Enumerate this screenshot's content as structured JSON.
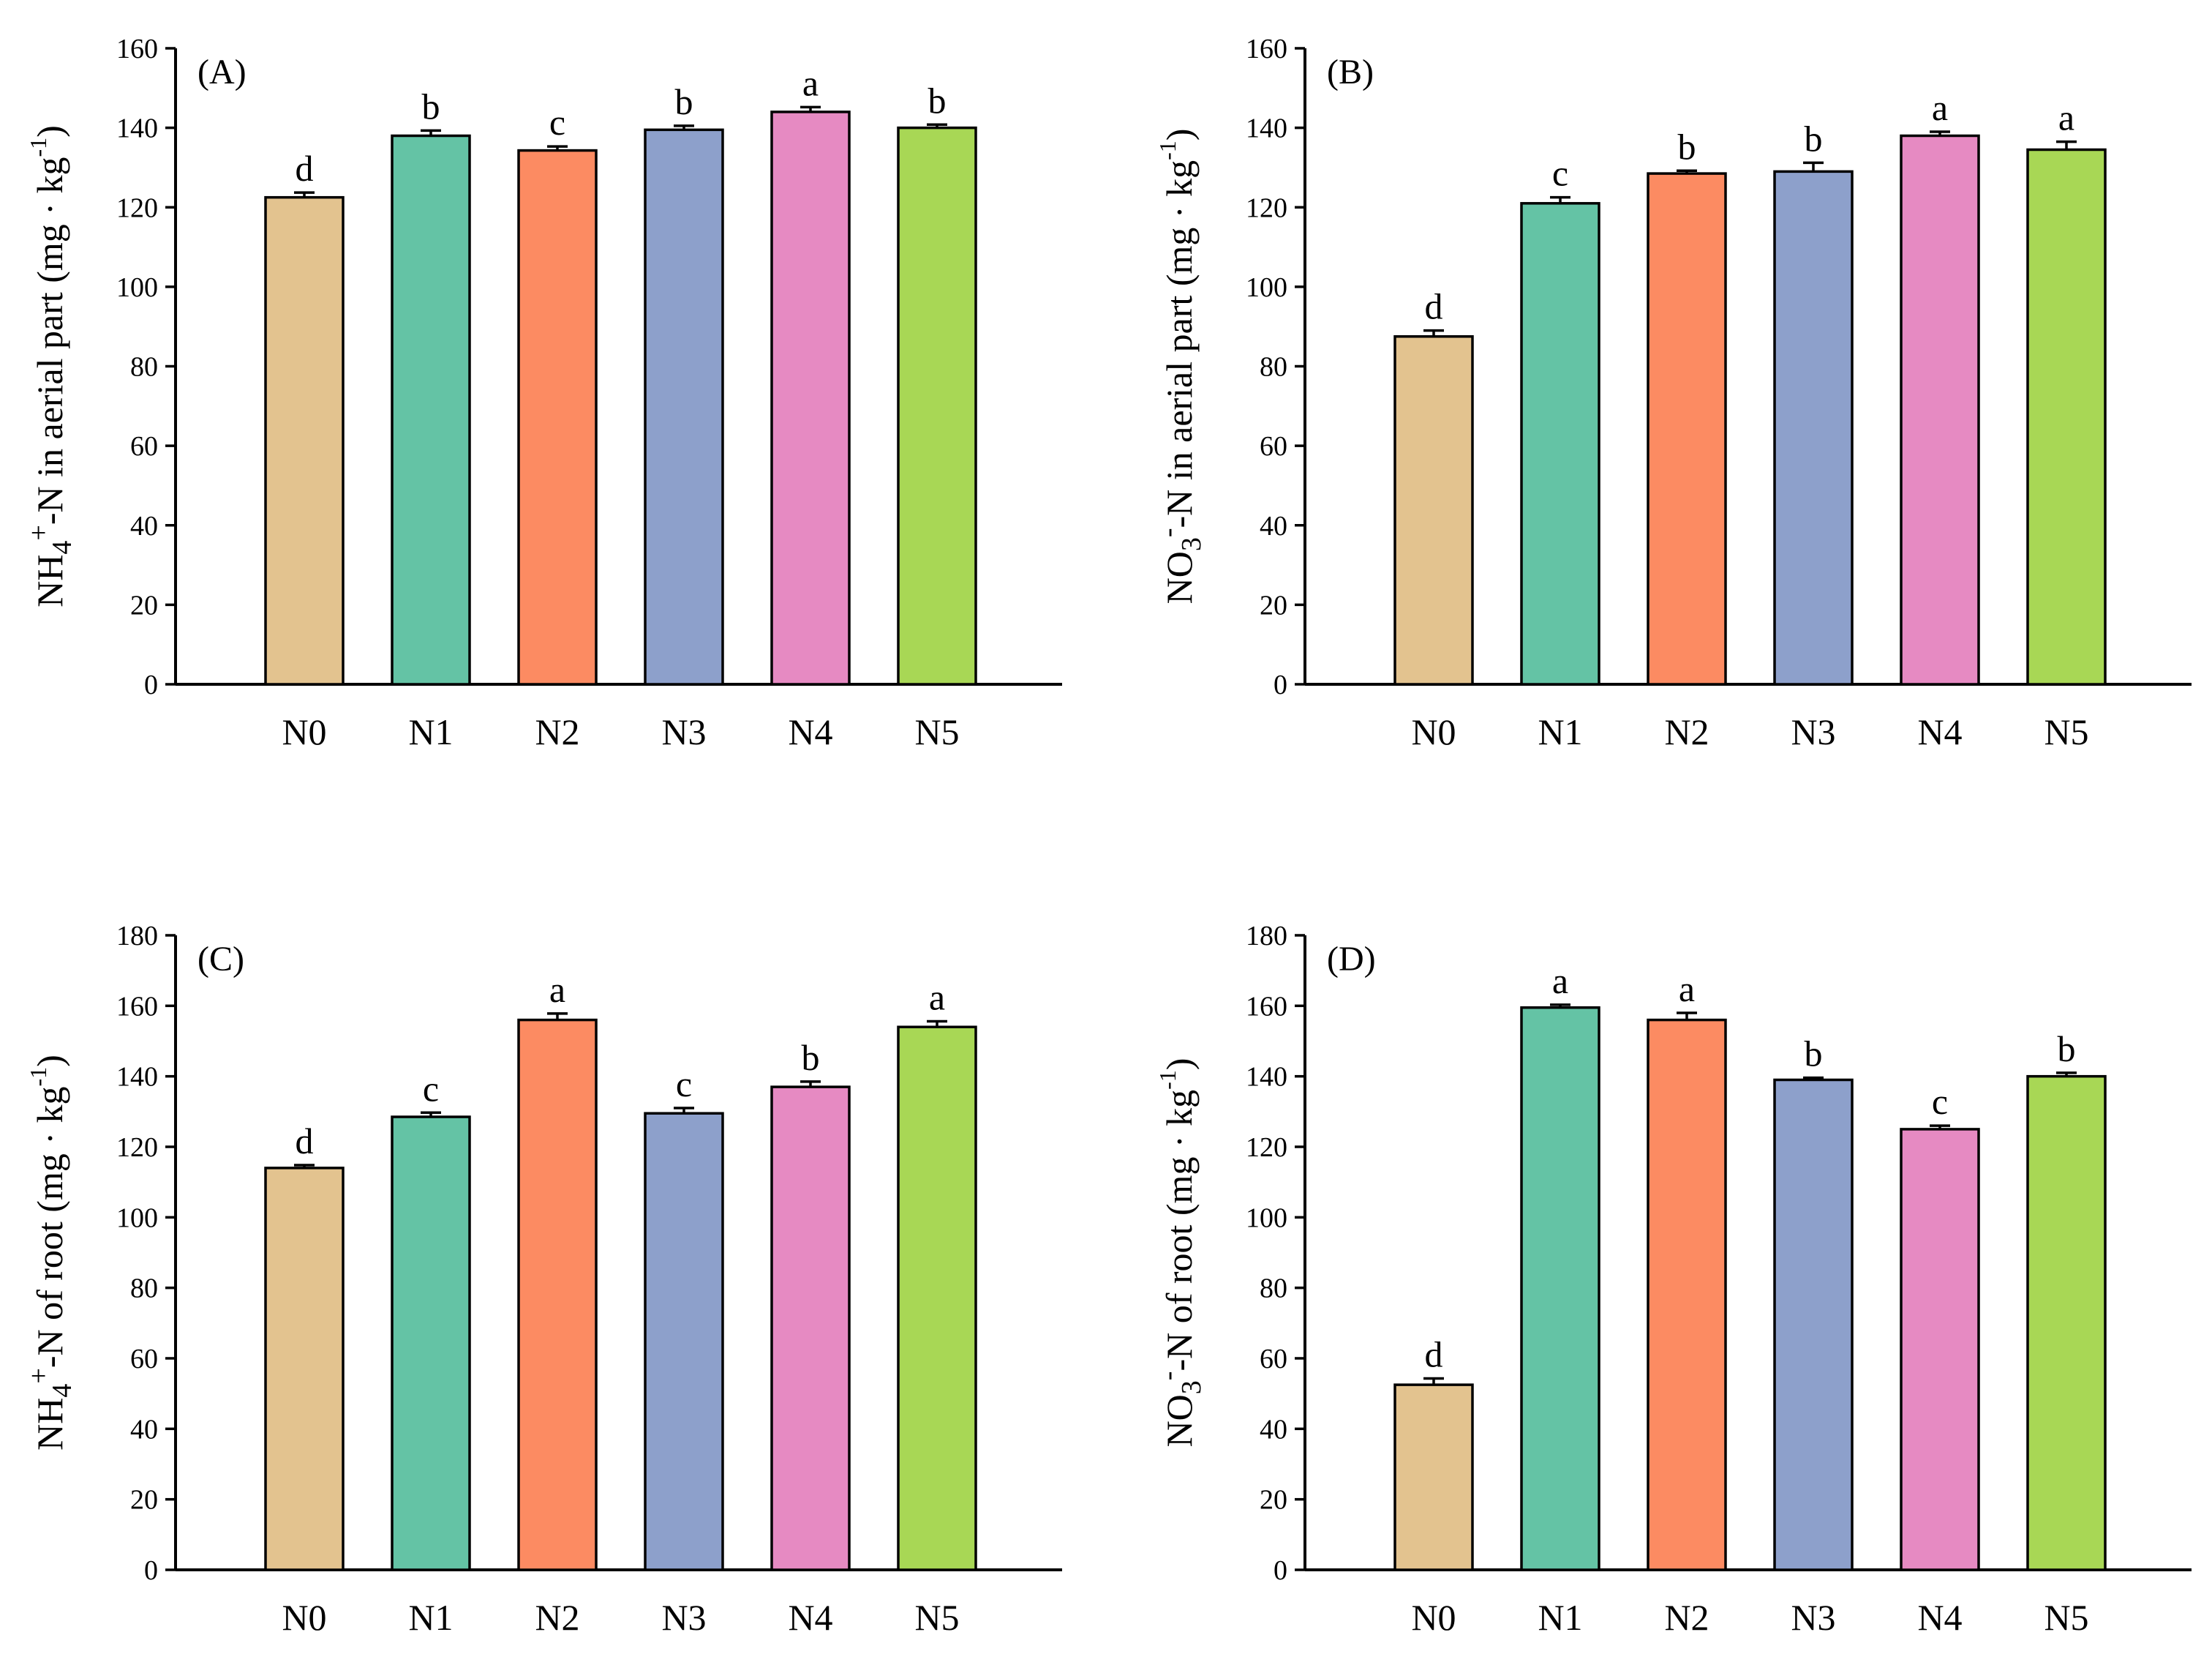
{
  "colors": [
    "#e3c38f",
    "#64c3a5",
    "#fc8b62",
    "#8da0cb",
    "#e68ac2",
    "#a8d755"
  ],
  "chart_data": [
    {
      "type": "bar",
      "panel": "(A)",
      "categories": [
        "N0",
        "N1",
        "N2",
        "N3",
        "N4",
        "N5"
      ],
      "values": [
        122.5,
        138,
        134.3,
        139.5,
        144,
        140
      ],
      "errors": [
        1.2,
        1.3,
        1.0,
        1.0,
        1.2,
        0.8
      ],
      "letters": [
        "d",
        "b",
        "c",
        "b",
        "a",
        "b"
      ],
      "ylabel": {
        "pre": "NH",
        "sub": "4",
        "sup": "+",
        "post": "-N in aerial part (mg · kg",
        "sup2": "-1",
        "end": ")"
      },
      "ylim": [
        0,
        160
      ],
      "yticks": [
        "0",
        "20",
        "40",
        "60",
        "80",
        "100",
        "120",
        "140",
        "160"
      ]
    },
    {
      "type": "bar",
      "panel": "(B)",
      "categories": [
        "N0",
        "N1",
        "N2",
        "N3",
        "N4",
        "N5"
      ],
      "values": [
        87.5,
        121,
        128.5,
        129,
        138,
        134.5
      ],
      "errors": [
        1.5,
        1.5,
        0.7,
        2.2,
        1.0,
        2.0
      ],
      "letters": [
        "d",
        "c",
        "b",
        "b",
        "a",
        "a"
      ],
      "ylabel": {
        "pre": "NO",
        "sub": "3",
        "sup": "-",
        "post": "-N in aerial part (mg · kg",
        "sup2": "-1",
        "end": ")"
      },
      "ylim": [
        0,
        160
      ],
      "yticks": [
        "0",
        "20",
        "40",
        "60",
        "80",
        "100",
        "120",
        "140",
        "160"
      ]
    },
    {
      "type": "bar",
      "panel": "(C)",
      "categories": [
        "N0",
        "N1",
        "N2",
        "N3",
        "N4",
        "N5"
      ],
      "values": [
        114,
        128.5,
        156,
        129.5,
        137,
        154
      ],
      "errors": [
        0.8,
        1.2,
        1.8,
        1.5,
        1.5,
        1.6
      ],
      "letters": [
        "d",
        "c",
        "a",
        "c",
        "b",
        "a"
      ],
      "ylabel": {
        "pre": "NH",
        "sub": "4",
        "sup": "+",
        "post": "-N of root (mg · kg",
        "sup2": "-1",
        "end": ")"
      },
      "ylim": [
        0,
        180
      ],
      "yticks": [
        "0",
        "20",
        "40",
        "60",
        "80",
        "100",
        "120",
        "140",
        "160",
        "180"
      ]
    },
    {
      "type": "bar",
      "panel": "(D)",
      "categories": [
        "N0",
        "N1",
        "N2",
        "N3",
        "N4",
        "N5"
      ],
      "values": [
        52.5,
        159.5,
        156,
        139,
        125,
        140
      ],
      "errors": [
        1.8,
        0.8,
        2.0,
        0.6,
        1.0,
        1.0
      ],
      "letters": [
        "d",
        "a",
        "a",
        "b",
        "c",
        "b"
      ],
      "ylabel": {
        "pre": "NO",
        "sub": "3",
        "sup": "-",
        "post": "-N of root (mg · kg",
        "sup2": "-1",
        "end": ")"
      },
      "ylim": [
        0,
        180
      ],
      "yticks": [
        "0",
        "20",
        "40",
        "60",
        "80",
        "100",
        "120",
        "140",
        "160",
        "180"
      ]
    }
  ]
}
